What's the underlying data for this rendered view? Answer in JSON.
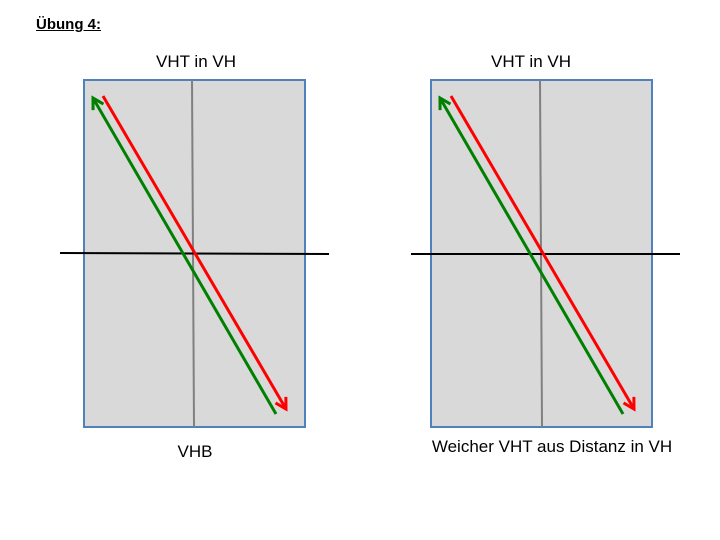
{
  "heading": "Übung 4:",
  "panels": [
    {
      "top_caption": "VHT in VH",
      "bottom_caption": "VHB"
    },
    {
      "top_caption": "VHT in VH",
      "bottom_caption": "Weicher VHT aus Distanz in VH"
    }
  ],
  "colors": {
    "panel_fill": "#d9d9d9",
    "panel_border": "#4f81bd",
    "vertical_line": "#808080",
    "horizontal_line": "#000000",
    "red_arrow": "#ff0000",
    "green_arrow": "#008000"
  }
}
